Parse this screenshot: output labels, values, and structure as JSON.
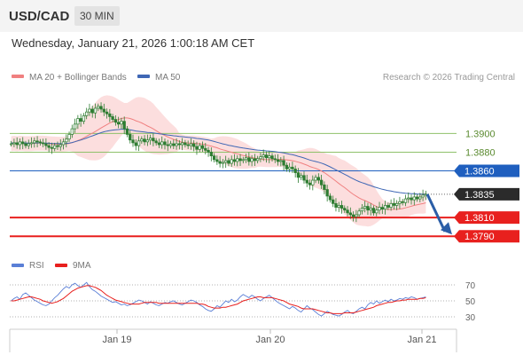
{
  "header": {
    "symbol": "USD/CAD",
    "timeframe": "30 MIN",
    "datetime": "Wednesday, January 21, 2026 1:00:18 AM CET"
  },
  "legend": {
    "ma20": "MA 20 + Bollinger Bands",
    "ma50": "MA 50",
    "copyright": "Research © 2026 Trading Central",
    "rsi": "RSI",
    "rsi_ma": "9MA"
  },
  "colors": {
    "candle": "#2e7d32",
    "ma20": "#f08080",
    "ma50": "#3f67b5",
    "band": "#fbd3d3",
    "resistance": "#8fc16a",
    "pivot": "#1f5fbf",
    "support": "#e8201e",
    "arrow": "#2b5ea7",
    "rsi": "#5a7fd6",
    "rsi_ma": "#e8201e"
  },
  "chart_data": [
    {
      "type": "candlestick",
      "x_ticks": [
        "Jan 19",
        "Jan 20",
        "Jan 21"
      ],
      "ylim": [
        1.3775,
        1.3945
      ],
      "ma50_start": 1.389,
      "levels": [
        {
          "value": 1.39,
          "label": "1.3900",
          "kind": "resistance"
        },
        {
          "value": 1.388,
          "label": "1.3880",
          "kind": "resistance"
        },
        {
          "value": 1.386,
          "label": "1.3860",
          "kind": "pivot"
        },
        {
          "value": 1.3835,
          "label": "1.3835",
          "kind": "last"
        },
        {
          "value": 1.381,
          "label": "1.3810",
          "kind": "support"
        },
        {
          "value": 1.379,
          "label": "1.3790",
          "kind": "support"
        }
      ],
      "close": [
        1.3889,
        1.389,
        1.3888,
        1.3891,
        1.3889,
        1.3887,
        1.3889,
        1.389,
        1.3892,
        1.3891,
        1.389,
        1.3889,
        1.3887,
        1.3885,
        1.3884,
        1.3887,
        1.3886,
        1.3888,
        1.3891,
        1.3894,
        1.3899,
        1.3905,
        1.391,
        1.3916,
        1.3913,
        1.3919,
        1.3923,
        1.3926,
        1.3922,
        1.3927,
        1.3929,
        1.3926,
        1.3923,
        1.3921,
        1.3918,
        1.3915,
        1.3912,
        1.391,
        1.3913,
        1.3905,
        1.3899,
        1.3893,
        1.389,
        1.3887,
        1.3892,
        1.3894,
        1.3891,
        1.3893,
        1.3895,
        1.3892,
        1.389,
        1.3888,
        1.3891,
        1.3888,
        1.3887,
        1.3889,
        1.3887,
        1.3889,
        1.3888,
        1.389,
        1.3888,
        1.3887,
        1.3889,
        1.3886,
        1.3883,
        1.3887,
        1.3884,
        1.3882,
        1.388,
        1.3876,
        1.3872,
        1.387,
        1.3868,
        1.3869,
        1.3871,
        1.3868,
        1.3872,
        1.387,
        1.3873,
        1.3871,
        1.3872,
        1.3874,
        1.387,
        1.3873,
        1.3871,
        1.3873,
        1.3875,
        1.3877,
        1.3874,
        1.3876,
        1.3873,
        1.3872,
        1.387,
        1.3871,
        1.3866,
        1.3862,
        1.3864,
        1.3862,
        1.3858,
        1.3853,
        1.3855,
        1.385,
        1.3847,
        1.3845,
        1.385,
        1.3853,
        1.385,
        1.3845,
        1.384,
        1.3833,
        1.3829,
        1.3825,
        1.3821,
        1.3823,
        1.382,
        1.3818,
        1.3815,
        1.3813,
        1.3811,
        1.3813,
        1.3817,
        1.382,
        1.3822,
        1.3818,
        1.382,
        1.3815,
        1.3818,
        1.3821,
        1.3819,
        1.3823,
        1.3821,
        1.3825,
        1.3823,
        1.3825,
        1.3827,
        1.3826,
        1.383,
        1.3831,
        1.3829,
        1.3832,
        1.383,
        1.3832,
        1.3834,
        1.3835
      ],
      "rsi": [
        50,
        53,
        55,
        52,
        58,
        60,
        57,
        54,
        51,
        49,
        47,
        45,
        44,
        46,
        50,
        54,
        57,
        61,
        65,
        68,
        66,
        70,
        72,
        69,
        67,
        70,
        73,
        68,
        64,
        62,
        59,
        56,
        54,
        52,
        50,
        48,
        49,
        47,
        45,
        46,
        44,
        45,
        47,
        49,
        51,
        50,
        48,
        46,
        49,
        47,
        45,
        44,
        46,
        48,
        47,
        49,
        50,
        48,
        46,
        45,
        47,
        49,
        51,
        50,
        48,
        45,
        43,
        40,
        38,
        37,
        40,
        44,
        42,
        46,
        50,
        48,
        52,
        49,
        51,
        55,
        58,
        56,
        54,
        57,
        55,
        52,
        50,
        53,
        55,
        57,
        54,
        51,
        48,
        46,
        44,
        42,
        40,
        43,
        41,
        38,
        36,
        40,
        44,
        41,
        39,
        36,
        33,
        31,
        34,
        37,
        35,
        33,
        32,
        31,
        33,
        36,
        38,
        35,
        34,
        37,
        40,
        42,
        40,
        45,
        48,
        46,
        50,
        47,
        49,
        51,
        49,
        52,
        50,
        51,
        53,
        52,
        54,
        53,
        55,
        54,
        52,
        53,
        54,
        55
      ],
      "rsi_ma": [
        50,
        50,
        51,
        52,
        53,
        54,
        55,
        55,
        54,
        53,
        52,
        50,
        49,
        48,
        47,
        48,
        49,
        51,
        53,
        56,
        59,
        62,
        64,
        66,
        67,
        68,
        69,
        69,
        68,
        67,
        65,
        63,
        60,
        57,
        55,
        53,
        51,
        50,
        49,
        48,
        47,
        46,
        46,
        46,
        46,
        47,
        48,
        48,
        48,
        48,
        48,
        47,
        47,
        47,
        47,
        47,
        47,
        47,
        47,
        47,
        47,
        47,
        47,
        47,
        47,
        46,
        46,
        45,
        43,
        42,
        41,
        41,
        41,
        42,
        42,
        43,
        44,
        45,
        46,
        48,
        50,
        51,
        52,
        53,
        54,
        55,
        55,
        54,
        54,
        54,
        54,
        53,
        52,
        51,
        50,
        48,
        46,
        45,
        44,
        43,
        41,
        40,
        40,
        40,
        40,
        39,
        38,
        37,
        36,
        35,
        35,
        34,
        34,
        34,
        34,
        35,
        35,
        35,
        35,
        36,
        37,
        38,
        39,
        40,
        41,
        42,
        44,
        45,
        46,
        47,
        48,
        48,
        49,
        50,
        50,
        51,
        51,
        52,
        52,
        52,
        52,
        53,
        53,
        54
      ],
      "rsi_levels": [
        70,
        50,
        30
      ],
      "rsi_ylim": [
        20,
        80
      ]
    }
  ]
}
